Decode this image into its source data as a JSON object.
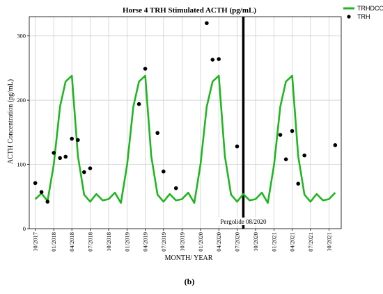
{
  "chart_data": {
    "type": "line",
    "title": "Horse 4 TRH Stimulated ACTH (pg/mL)",
    "xlabel": "MONTH/ YEAR",
    "ylabel": "ACTH Concentration (pg/mL)",
    "ylim": [
      0,
      330
    ],
    "xlim": [
      "2017-09-01",
      "2021-12-01"
    ],
    "yticks": [
      0,
      100,
      200,
      300
    ],
    "xticks": [
      {
        "date": "2017-10-01",
        "label": "10/2017"
      },
      {
        "date": "2018-01-01",
        "label": "01/2018"
      },
      {
        "date": "2018-04-01",
        "label": "04/2018"
      },
      {
        "date": "2018-07-01",
        "label": "07/2018"
      },
      {
        "date": "2018-10-01",
        "label": "10/2018"
      },
      {
        "date": "2019-01-01",
        "label": "01/2019"
      },
      {
        "date": "2019-04-01",
        "label": "04/2019"
      },
      {
        "date": "2019-07-01",
        "label": "07/2019"
      },
      {
        "date": "2019-10-01",
        "label": "10/2019"
      },
      {
        "date": "2020-01-01",
        "label": "01/2020"
      },
      {
        "date": "2020-04-01",
        "label": "04/2020"
      },
      {
        "date": "2020-07-01",
        "label": "07/2020"
      },
      {
        "date": "2020-10-01",
        "label": "10/2020"
      },
      {
        "date": "2021-01-01",
        "label": "01/2021"
      },
      {
        "date": "2021-04-01",
        "label": "04/2021"
      },
      {
        "date": "2021-07-01",
        "label": "07/2021"
      },
      {
        "date": "2021-10-01",
        "label": "10/2021"
      }
    ],
    "grid": true,
    "legend": "top-right",
    "series": [
      {
        "name": "TRHDCOV",
        "kind": "line",
        "color": "#22b522",
        "points": [
          [
            "2017-10-01",
            46
          ],
          [
            "2017-11-01",
            55
          ],
          [
            "2017-12-01",
            43
          ],
          [
            "2018-01-01",
            100
          ],
          [
            "2018-02-01",
            190
          ],
          [
            "2018-03-01",
            229
          ],
          [
            "2018-04-01",
            238
          ],
          [
            "2018-05-01",
            113
          ],
          [
            "2018-06-01",
            53
          ],
          [
            "2018-07-01",
            42
          ],
          [
            "2018-08-01",
            54
          ],
          [
            "2018-09-01",
            44
          ],
          [
            "2018-10-01",
            46
          ],
          [
            "2018-11-01",
            56
          ],
          [
            "2018-12-01",
            40
          ],
          [
            "2019-01-01",
            100
          ],
          [
            "2019-02-01",
            190
          ],
          [
            "2019-03-01",
            229
          ],
          [
            "2019-04-01",
            238
          ],
          [
            "2019-05-01",
            113
          ],
          [
            "2019-06-01",
            53
          ],
          [
            "2019-07-01",
            42
          ],
          [
            "2019-08-01",
            54
          ],
          [
            "2019-09-01",
            44
          ],
          [
            "2019-10-01",
            46
          ],
          [
            "2019-11-01",
            56
          ],
          [
            "2019-12-01",
            40
          ],
          [
            "2020-01-01",
            100
          ],
          [
            "2020-02-01",
            190
          ],
          [
            "2020-03-01",
            229
          ],
          [
            "2020-04-01",
            238
          ],
          [
            "2020-05-01",
            113
          ],
          [
            "2020-06-01",
            53
          ],
          [
            "2020-07-01",
            42
          ],
          [
            "2020-08-01",
            54
          ],
          [
            "2020-09-01",
            44
          ],
          [
            "2020-10-01",
            46
          ],
          [
            "2020-11-01",
            56
          ],
          [
            "2020-12-01",
            40
          ],
          [
            "2021-01-01",
            100
          ],
          [
            "2021-02-01",
            190
          ],
          [
            "2021-03-01",
            229
          ],
          [
            "2021-04-01",
            238
          ],
          [
            "2021-05-01",
            113
          ],
          [
            "2021-06-01",
            53
          ],
          [
            "2021-07-01",
            42
          ],
          [
            "2021-08-01",
            54
          ],
          [
            "2021-09-01",
            44
          ],
          [
            "2021-10-01",
            46
          ],
          [
            "2021-11-01",
            56
          ]
        ]
      },
      {
        "name": "TRH",
        "kind": "scatter",
        "color": "#000000",
        "points": [
          [
            "2017-10-01",
            71
          ],
          [
            "2017-11-01",
            57
          ],
          [
            "2017-12-01",
            42
          ],
          [
            "2018-01-01",
            118
          ],
          [
            "2018-02-01",
            110
          ],
          [
            "2018-03-01",
            112
          ],
          [
            "2018-04-01",
            140
          ],
          [
            "2018-05-01",
            138
          ],
          [
            "2018-06-01",
            88
          ],
          [
            "2018-07-01",
            94
          ],
          [
            "2019-03-01",
            194
          ],
          [
            "2019-04-01",
            249
          ],
          [
            "2019-06-01",
            149
          ],
          [
            "2019-07-01",
            89
          ],
          [
            "2019-09-01",
            63
          ],
          [
            "2020-02-01",
            320
          ],
          [
            "2020-03-01",
            263
          ],
          [
            "2020-04-01",
            264
          ],
          [
            "2020-07-01",
            128
          ],
          [
            "2021-02-01",
            146
          ],
          [
            "2021-03-01",
            108
          ],
          [
            "2021-04-01",
            152
          ],
          [
            "2021-05-01",
            70
          ],
          [
            "2021-06-01",
            114
          ],
          [
            "2021-11-01",
            130
          ]
        ]
      }
    ],
    "annotations": [
      {
        "type": "vline",
        "date": "2020-08-01",
        "label": "Pergolide 08/2020"
      }
    ]
  },
  "caption": "(b)"
}
